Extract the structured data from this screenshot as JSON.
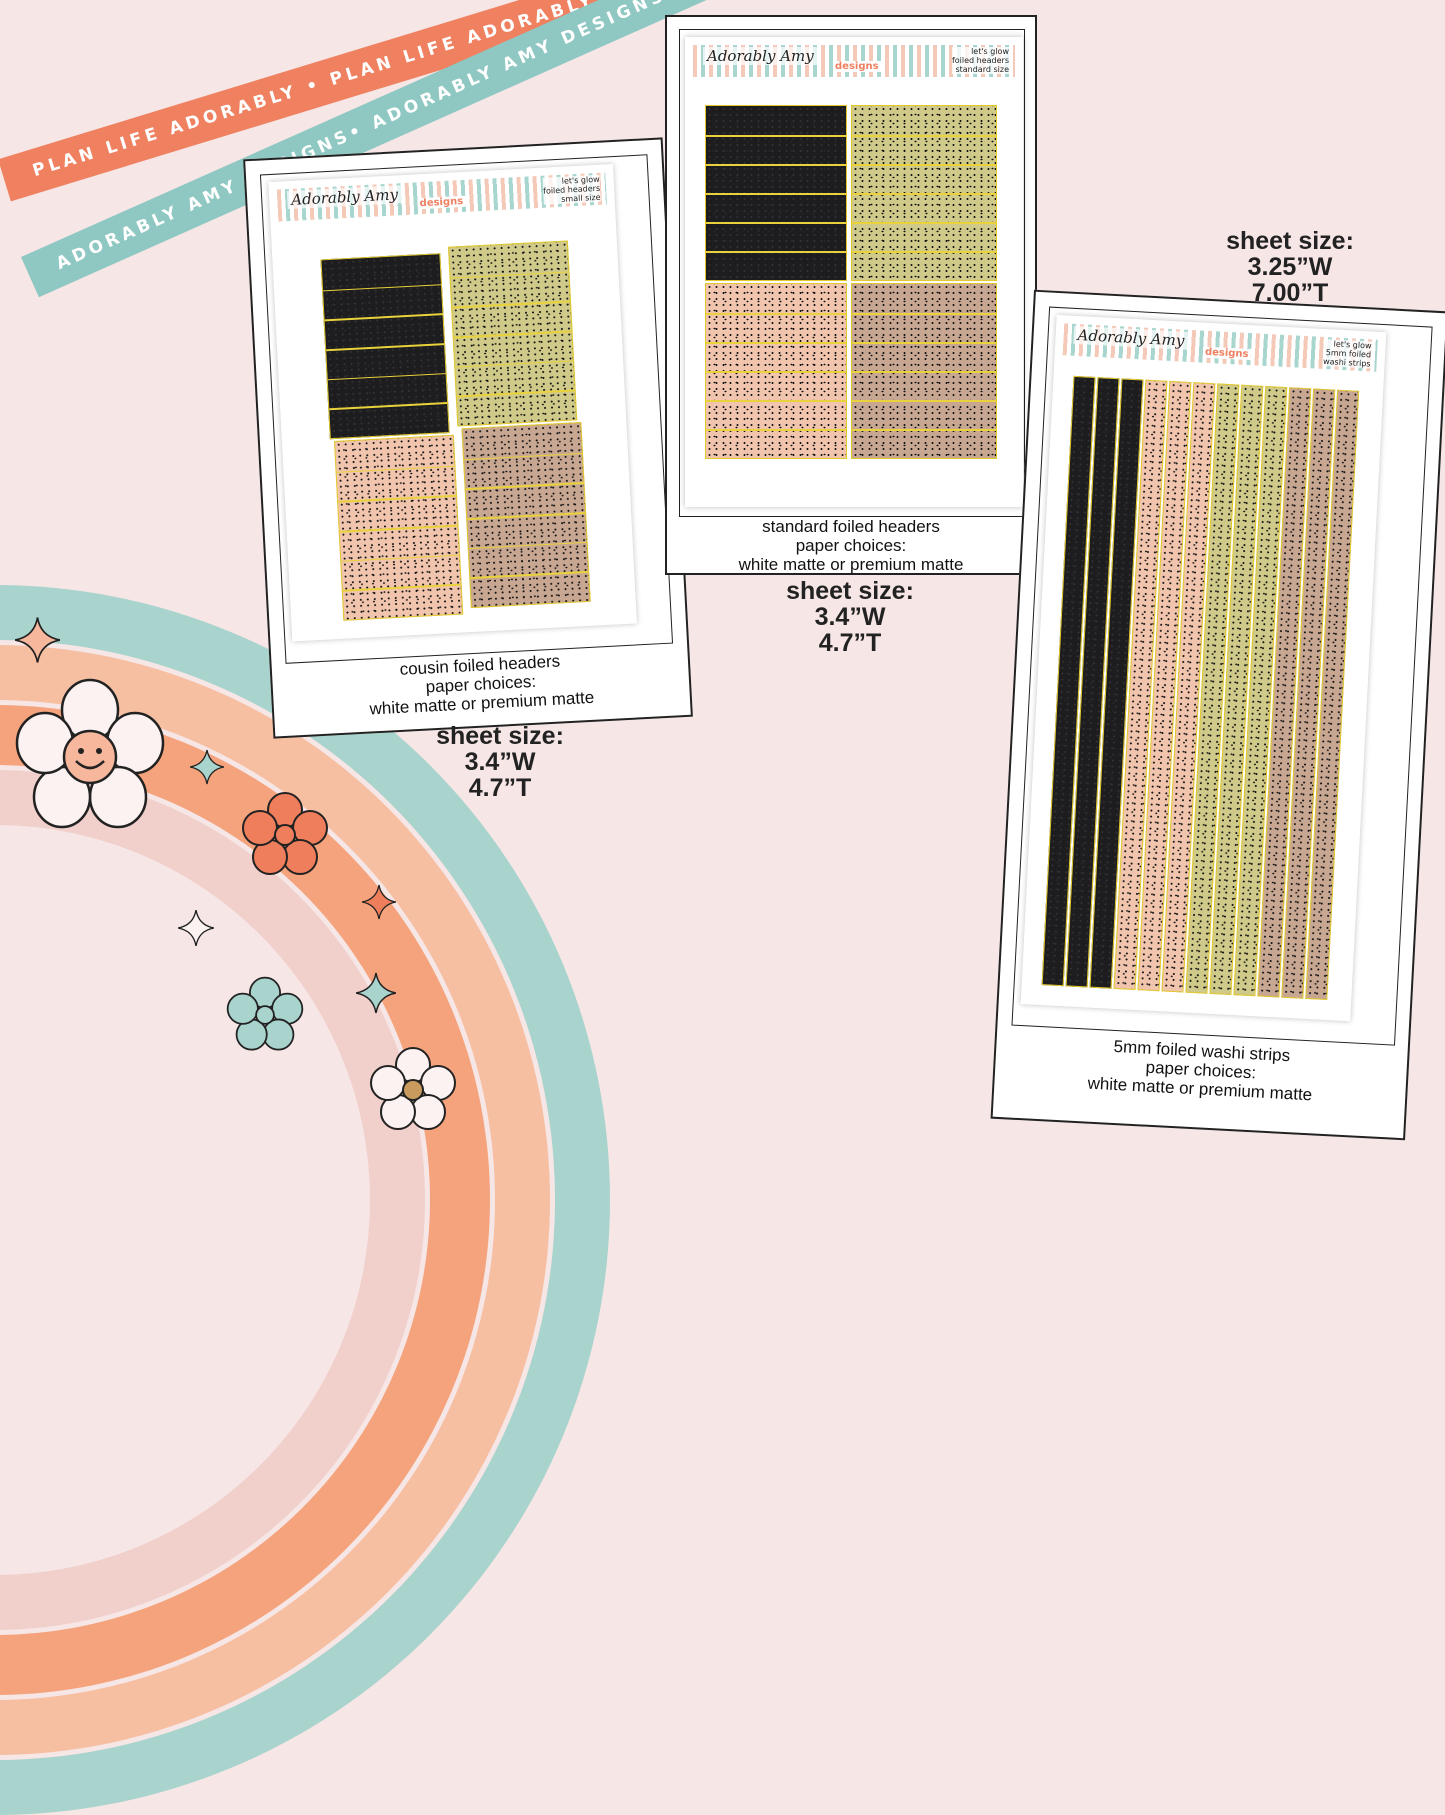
{
  "ribbons": {
    "orange_text": "PLAN LIFE ADORABLY • PLAN LIFE ADORABLY • PLAN LIFE ADORABLY • PLAN LIFE ADORABLY",
    "teal_text": "ADORABLY AMY DESIGNS• ADORABLY AMY DESIGNS• ADORABLY AMY DESIGNS• AD"
  },
  "brand": {
    "name": "Adorably Amy",
    "sub": "designs"
  },
  "cards": [
    {
      "sheet_line1": "let's glow",
      "sheet_line2": "foiled headers",
      "sheet_line3": "small size",
      "caption1": "cousin foiled headers",
      "caption2": "paper choices:",
      "caption3": "white matte or premium matte",
      "size_title": "sheet size:",
      "size_w": "3.4”W",
      "size_t": "4.7”T"
    },
    {
      "sheet_line1": "let's glow",
      "sheet_line2": "foiled headers",
      "sheet_line3": "standard size",
      "caption1": "standard foiled headers",
      "caption2": "paper choices:",
      "caption3": "white matte or premium matte",
      "size_title": "sheet size:",
      "size_w": "3.4”W",
      "size_t": "4.7”T"
    },
    {
      "sheet_line1": "let's glow",
      "sheet_line2": "5mm foiled",
      "sheet_line3": "washi strips",
      "caption1": "5mm foiled washi strips",
      "caption2": "paper choices:",
      "caption3": "white matte or premium matte",
      "size_title": "sheet size:",
      "size_w": "3.25”W",
      "size_t": "7.00”T"
    }
  ],
  "colors": {
    "black": "#1d1d1f",
    "olive": "#cfc98a",
    "peach": "#f0c4ad",
    "taupe": "#c7a692",
    "foil": "#e2c92a"
  },
  "decor": {
    "icons": [
      "smiley-flower-icon",
      "flower-icon",
      "sparkle-icon"
    ]
  }
}
